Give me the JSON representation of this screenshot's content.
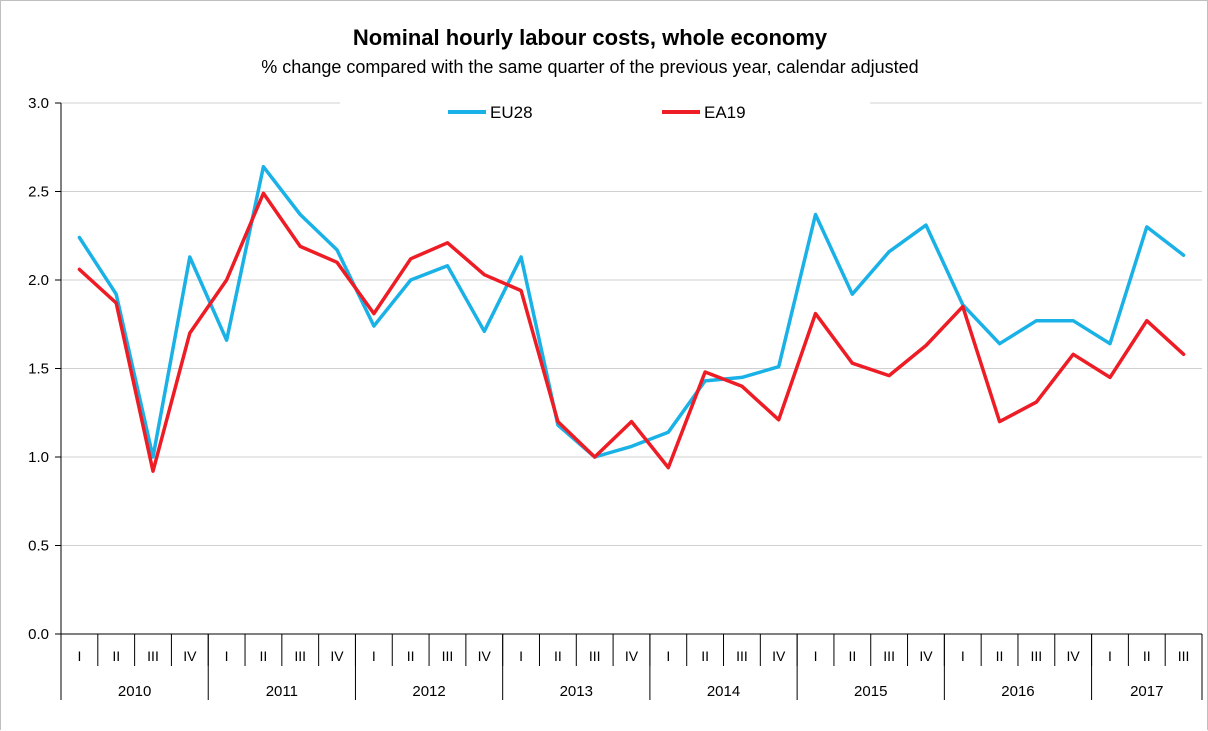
{
  "chart_data": {
    "type": "line",
    "title": "Nominal hourly labour costs, whole economy",
    "subtitle": "% change compared with the same quarter of the previous year, calendar adjusted",
    "xlabel": "",
    "ylabel": "",
    "ylim": [
      0,
      3
    ],
    "yticks": [
      "0.0",
      "0.5",
      "1.0",
      "1.5",
      "2.0",
      "2.5",
      "3.0"
    ],
    "grid": true,
    "legend_position": "top-center",
    "quarters": [
      "I",
      "II",
      "III",
      "IV",
      "I",
      "II",
      "III",
      "IV",
      "I",
      "II",
      "III",
      "IV",
      "I",
      "II",
      "III",
      "IV",
      "I",
      "II",
      "III",
      "IV",
      "I",
      "II",
      "III",
      "IV",
      "I",
      "II",
      "III",
      "IV",
      "I",
      "II",
      "III"
    ],
    "years": [
      "2010",
      "2011",
      "2012",
      "2013",
      "2014",
      "2015",
      "2016",
      "2017"
    ],
    "series": [
      {
        "name": "EU28",
        "color": "#1ab2e6",
        "values": [
          2.24,
          1.92,
          1.0,
          2.13,
          1.66,
          2.64,
          2.37,
          2.17,
          1.74,
          2.0,
          2.08,
          1.71,
          2.13,
          1.18,
          1.0,
          1.06,
          1.14,
          1.43,
          1.45,
          1.51,
          2.37,
          1.92,
          2.16,
          2.31,
          1.86,
          1.64,
          1.77,
          1.77,
          1.64,
          2.3,
          2.14
        ]
      },
      {
        "name": "EA19",
        "color": "#ee1c25",
        "values": [
          2.06,
          1.87,
          0.92,
          1.7,
          2.0,
          2.49,
          2.19,
          2.1,
          1.81,
          2.12,
          2.21,
          2.03,
          1.94,
          1.2,
          1.0,
          1.2,
          0.94,
          1.48,
          1.4,
          1.21,
          1.81,
          1.53,
          1.46,
          1.63,
          1.85,
          1.2,
          1.31,
          1.58,
          1.45,
          1.77,
          1.58
        ]
      }
    ]
  }
}
